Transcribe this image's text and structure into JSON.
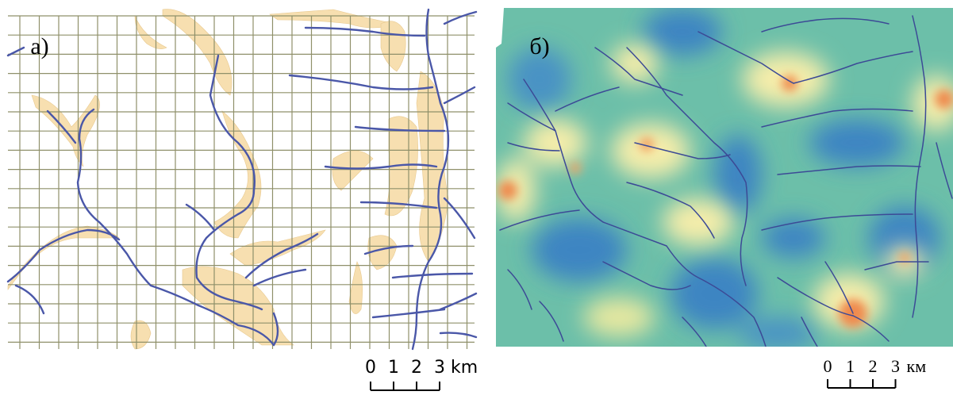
{
  "panels": [
    {
      "label": "а)",
      "scale": {
        "ticks": [
          0,
          1,
          2,
          3
        ],
        "unit": "km"
      }
    },
    {
      "label": "б)",
      "scale": {
        "ticks": [
          0,
          1,
          2,
          3
        ],
        "unit": "км"
      }
    }
  ]
}
